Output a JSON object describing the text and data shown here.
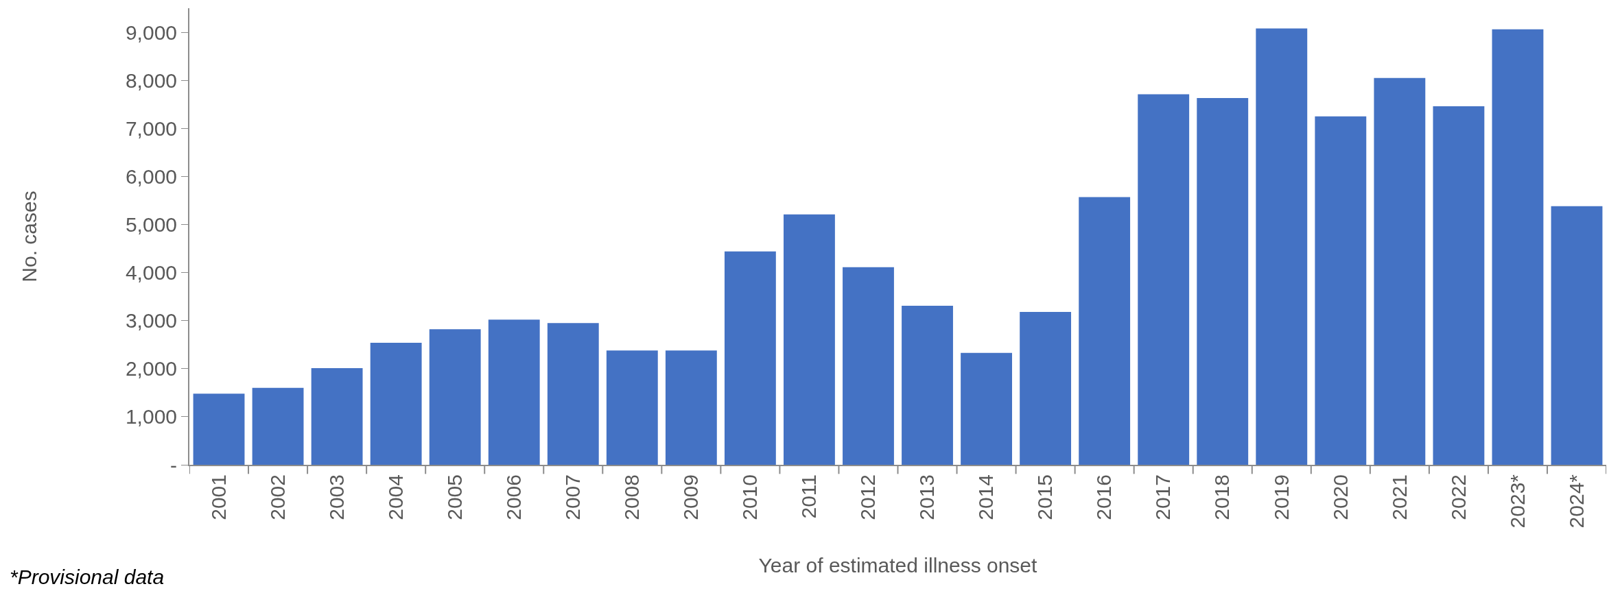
{
  "chart_data": {
    "type": "bar",
    "xlabel": "Year of estimated illness onset",
    "ylabel": "No. cases",
    "annotations": [
      "*Provisional data"
    ],
    "categories": [
      "2001",
      "2002",
      "2003",
      "2004",
      "2005",
      "2006",
      "2007",
      "2008",
      "2009",
      "2010",
      "2011",
      "2012",
      "2013",
      "2014",
      "2015",
      "2016",
      "2017",
      "2018",
      "2019",
      "2020",
      "2021",
      "2022",
      "2023*",
      "2024*"
    ],
    "values": [
      1480,
      1600,
      2010,
      2540,
      2820,
      3020,
      2950,
      2380,
      2380,
      4440,
      5210,
      4110,
      3310,
      2330,
      3180,
      5570,
      7710,
      7630,
      9080,
      7250,
      8050,
      7460,
      9060,
      5380
    ],
    "color": "#4472c4",
    "ylim": [
      0,
      9500
    ],
    "yticks": [
      {
        "value": 0,
        "label": "-"
      },
      {
        "value": 1000,
        "label": "1,000"
      },
      {
        "value": 2000,
        "label": "2,000"
      },
      {
        "value": 3000,
        "label": "3,000"
      },
      {
        "value": 4000,
        "label": "4,000"
      },
      {
        "value": 5000,
        "label": "5,000"
      },
      {
        "value": 6000,
        "label": "6,000"
      },
      {
        "value": 7000,
        "label": "7,000"
      },
      {
        "value": 8000,
        "label": "8,000"
      },
      {
        "value": 9000,
        "label": "9,000"
      }
    ],
    "grid": false
  }
}
